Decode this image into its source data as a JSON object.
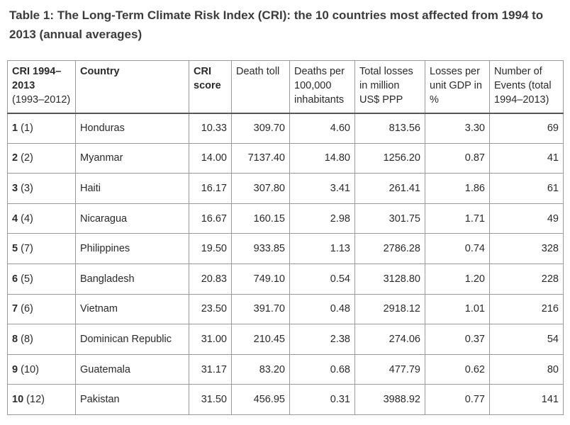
{
  "caption": "Table 1: The Long-Term Climate Risk Index (CRI): the 10 countries most affected from 1994 to 2013 (annual averages)",
  "headers": {
    "rank_main": "CRI 1994–2013",
    "rank_sub": "(1993–2012)",
    "country": "Country",
    "score": "CRI score",
    "death_toll": "Death toll",
    "deaths_per_100k": "Deaths per 100,000 inhabitants",
    "total_losses": "Total losses in million US$ PPP",
    "losses_gdp": "Losses per unit GDP in %",
    "events": "Number of Events (total 1994–2013)"
  },
  "rows": [
    {
      "rank": "1",
      "prev": "(1)",
      "country": "Honduras",
      "score": "10.33",
      "death_toll": "309.70",
      "deaths_per_100k": "4.60",
      "total_losses": "813.56",
      "losses_gdp": "3.30",
      "events": "69"
    },
    {
      "rank": "2",
      "prev": "(2)",
      "country": "Myanmar",
      "score": "14.00",
      "death_toll": "7137.40",
      "deaths_per_100k": "14.80",
      "total_losses": "1256.20",
      "losses_gdp": "0.87",
      "events": "41"
    },
    {
      "rank": "3",
      "prev": "(3)",
      "country": "Haiti",
      "score": "16.17",
      "death_toll": "307.80",
      "deaths_per_100k": "3.41",
      "total_losses": "261.41",
      "losses_gdp": "1.86",
      "events": "61"
    },
    {
      "rank": "4",
      "prev": "(4)",
      "country": "Nicaragua",
      "score": "16.67",
      "death_toll": "160.15",
      "deaths_per_100k": "2.98",
      "total_losses": "301.75",
      "losses_gdp": "1.71",
      "events": "49"
    },
    {
      "rank": "5",
      "prev": "(7)",
      "country": "Philippines",
      "score": "19.50",
      "death_toll": "933.85",
      "deaths_per_100k": "1.13",
      "total_losses": "2786.28",
      "losses_gdp": "0.74",
      "events": "328"
    },
    {
      "rank": "6",
      "prev": "(5)",
      "country": "Bangladesh",
      "score": "20.83",
      "death_toll": "749.10",
      "deaths_per_100k": "0.54",
      "total_losses": "3128.80",
      "losses_gdp": "1.20",
      "events": "228"
    },
    {
      "rank": "7",
      "prev": "(6)",
      "country": "Vietnam",
      "score": "23.50",
      "death_toll": "391.70",
      "deaths_per_100k": "0.48",
      "total_losses": "2918.12",
      "losses_gdp": "1.01",
      "events": "216"
    },
    {
      "rank": "8",
      "prev": "(8)",
      "country": "Dominican Republic",
      "score": "31.00",
      "death_toll": "210.45",
      "deaths_per_100k": "2.38",
      "total_losses": "274.06",
      "losses_gdp": "0.37",
      "events": "54"
    },
    {
      "rank": "9",
      "prev": "(10)",
      "country": "Guatemala",
      "score": "31.17",
      "death_toll": "83.20",
      "deaths_per_100k": "0.68",
      "total_losses": "477.79",
      "losses_gdp": "0.62",
      "events": "80"
    },
    {
      "rank": "10",
      "prev": "(12)",
      "country": "Pakistan",
      "score": "31.50",
      "death_toll": "456.95",
      "deaths_per_100k": "0.31",
      "total_losses": "3988.92",
      "losses_gdp": "0.77",
      "events": "141"
    }
  ]
}
